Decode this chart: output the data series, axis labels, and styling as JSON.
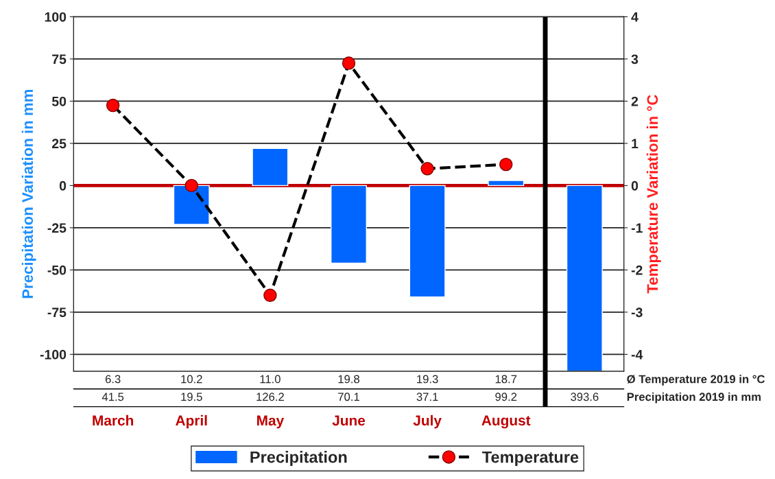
{
  "chart_data": {
    "type": "bar",
    "categories": [
      "March",
      "April",
      "May",
      "June",
      "July",
      "August",
      null
    ],
    "series": [
      {
        "name": "Precipitation",
        "color": "#0066ff",
        "values": [
          null,
          -23,
          22,
          -46,
          -66,
          3,
          -110
        ]
      },
      {
        "name": "Temperature",
        "type": "line",
        "axis": "y2",
        "color": "#ff0000",
        "marker": "circle",
        "line_style": "dashed",
        "values": [
          1.9,
          0,
          -2.6,
          2.9,
          0.4,
          0.5,
          null
        ]
      }
    ],
    "ylabel": "Precipitation Variation in mm",
    "y2label": "Temperature Variation in °C",
    "ylim": [
      -110,
      100
    ],
    "yticks": [
      -100,
      -75,
      -50,
      -25,
      0,
      25,
      50,
      75,
      100
    ],
    "y2lim": [
      -4.4,
      4
    ],
    "y2ticks": [
      -4,
      -3,
      -2,
      -1,
      0,
      1,
      2,
      3,
      4
    ],
    "ref_lines": [
      {
        "axis": "y",
        "value": 0,
        "color": "#c00000"
      }
    ],
    "annotations": [
      "6.3",
      "10.2",
      "11.0",
      "19.8",
      "19.3",
      "18.7",
      "Ø Temperature 2019 in °C",
      "41.5",
      "19.5",
      "126.2",
      "70.1",
      "37.1",
      "99.2",
      "393.6",
      "Precipitation 2019 in mm"
    ],
    "grid": "y",
    "legend": "bottom"
  }
}
